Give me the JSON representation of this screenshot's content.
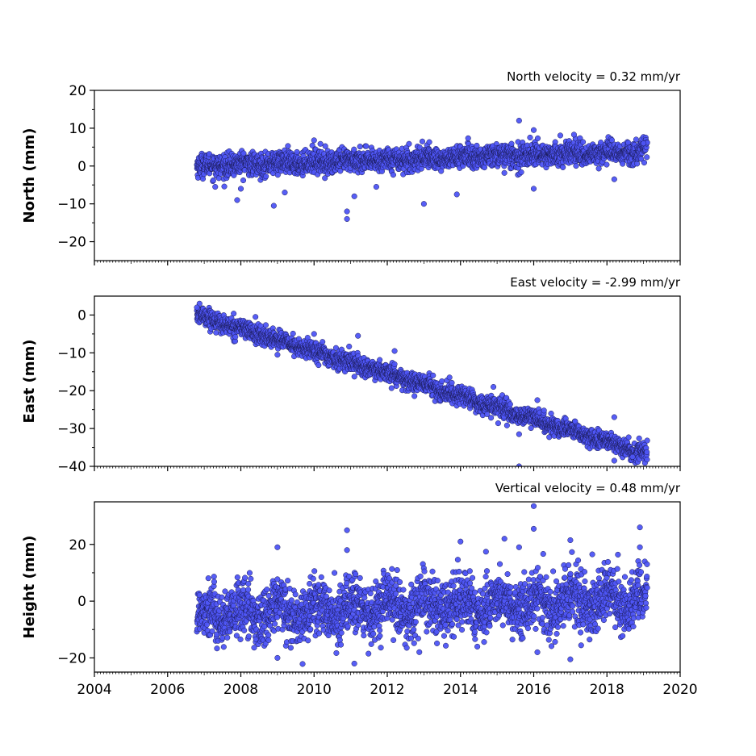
{
  "chart_data": [
    {
      "type": "scatter",
      "ylabel": "North (mm)",
      "annotation": "North velocity = 0.32 mm/yr",
      "xlim": [
        2004,
        2020
      ],
      "ylim": [
        -25,
        20
      ],
      "yticks": [
        20,
        10,
        0,
        -10,
        -20
      ],
      "ytick_labels": [
        "20",
        "10",
        "0",
        "−10",
        "−20"
      ],
      "x_start": 2006.8,
      "x_end": 2019.1,
      "velocity_mm_per_yr": 0.32,
      "intercept_mm": 0.0,
      "noise_mm": 1.5,
      "outliers": [
        {
          "x": 2007.3,
          "y": -5.5
        },
        {
          "x": 2007.9,
          "y": -9.0
        },
        {
          "x": 2008.0,
          "y": -6.0
        },
        {
          "x": 2008.9,
          "y": -10.5
        },
        {
          "x": 2009.2,
          "y": -7.0
        },
        {
          "x": 2010.0,
          "y": 6.8
        },
        {
          "x": 2010.9,
          "y": -14.0
        },
        {
          "x": 2010.9,
          "y": -12.0
        },
        {
          "x": 2011.1,
          "y": -8.0
        },
        {
          "x": 2011.7,
          "y": -5.5
        },
        {
          "x": 2013.0,
          "y": -10.0
        },
        {
          "x": 2013.9,
          "y": -7.5
        },
        {
          "x": 2015.6,
          "y": 12.0
        },
        {
          "x": 2016.0,
          "y": 9.5
        },
        {
          "x": 2016.0,
          "y": -6.0
        },
        {
          "x": 2017.1,
          "y": 8.3
        },
        {
          "x": 2018.2,
          "y": -3.5
        },
        {
          "x": 2019.0,
          "y": 6.0
        }
      ]
    },
    {
      "type": "scatter",
      "ylabel": "East (mm)",
      "annotation": "East velocity = -2.99 mm/yr",
      "xlim": [
        2004,
        2020
      ],
      "ylim": [
        -40,
        5
      ],
      "yticks": [
        0,
        -10,
        -20,
        -30,
        -40
      ],
      "ytick_labels": [
        "0",
        "−10",
        "−20",
        "−30",
        "−40"
      ],
      "x_start": 2006.8,
      "x_end": 2019.1,
      "velocity_mm_per_yr": -2.99,
      "intercept_mm": 0.0,
      "noise_mm": 1.2,
      "outliers": [
        {
          "x": 2006.8,
          "y": 2.0
        },
        {
          "x": 2008.4,
          "y": -0.5
        },
        {
          "x": 2009.0,
          "y": -10.5
        },
        {
          "x": 2010.0,
          "y": -5.0
        },
        {
          "x": 2011.2,
          "y": -5.5
        },
        {
          "x": 2012.2,
          "y": -9.5
        },
        {
          "x": 2013.7,
          "y": -16.5
        },
        {
          "x": 2014.9,
          "y": -19.0
        },
        {
          "x": 2015.6,
          "y": -31.5
        },
        {
          "x": 2015.6,
          "y": -40.0
        },
        {
          "x": 2016.1,
          "y": -22.5
        },
        {
          "x": 2018.2,
          "y": -38.5
        },
        {
          "x": 2018.2,
          "y": -27.0
        },
        {
          "x": 2018.7,
          "y": -37.5
        }
      ]
    },
    {
      "type": "scatter",
      "ylabel": "Height (mm)",
      "annotation": "Vertical velocity = 0.48 mm/yr",
      "xlim": [
        2004,
        2020
      ],
      "ylim": [
        -25,
        35
      ],
      "yticks": [
        20,
        0,
        -20
      ],
      "ytick_labels": [
        "20",
        "0",
        "−20"
      ],
      "x_start": 2006.8,
      "x_end": 2019.1,
      "velocity_mm_per_yr": 0.48,
      "intercept_mm": -5.0,
      "noise_mm": 5.0,
      "outliers": [
        {
          "x": 2009.0,
          "y": 19.0
        },
        {
          "x": 2009.0,
          "y": -20.0
        },
        {
          "x": 2010.9,
          "y": 25.0
        },
        {
          "x": 2010.9,
          "y": 18.0
        },
        {
          "x": 2011.1,
          "y": -22.0
        },
        {
          "x": 2014.0,
          "y": 21.0
        },
        {
          "x": 2015.2,
          "y": 22.0
        },
        {
          "x": 2015.6,
          "y": 19.0
        },
        {
          "x": 2016.0,
          "y": 33.5
        },
        {
          "x": 2016.0,
          "y": 25.5
        },
        {
          "x": 2016.1,
          "y": -18.0
        },
        {
          "x": 2017.0,
          "y": 21.5
        },
        {
          "x": 2017.0,
          "y": -20.5
        },
        {
          "x": 2017.6,
          "y": 16.5
        },
        {
          "x": 2018.9,
          "y": 26.0
        },
        {
          "x": 2018.9,
          "y": 19.0
        }
      ]
    }
  ],
  "x_axis": {
    "ticks": [
      2004,
      2006,
      2008,
      2010,
      2012,
      2014,
      2016,
      2018,
      2020
    ],
    "tick_labels": [
      "2004",
      "2006",
      "2008",
      "2010",
      "2012",
      "2014",
      "2016",
      "2018",
      "2020"
    ]
  },
  "colors": {
    "marker_fill": "#4e55f5",
    "marker_edge": "#1a1a55"
  }
}
